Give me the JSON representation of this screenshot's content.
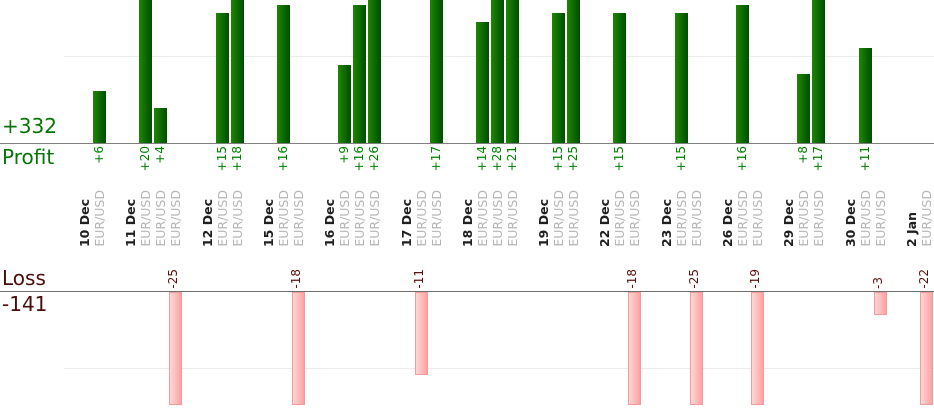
{
  "chart_data": {
    "type": "bar",
    "description": "Daily trade profit (top, green) and loss (bottom, pink) bar chart, values in pips per trade",
    "profit_total_label": "+332",
    "profit_axis_label": "Profit",
    "loss_axis_label": "Loss",
    "loss_total_label": "-141",
    "gridlines": {
      "profit": [
        10
      ],
      "loss": [
        -10
      ]
    },
    "legend_position": "none",
    "colors": {
      "profit_bar": "#0b7a00",
      "loss_bar": "#ffaaaa",
      "profit_text": "#008000",
      "loss_text": "#5c1010",
      "date_text": "#1f1f1f",
      "symbol_text": "#b5b5b5"
    },
    "groups": [
      {
        "date": "10 Dec",
        "trades": [
          {
            "symbol": "EUR/USD",
            "value": 6
          }
        ]
      },
      {
        "date": "11 Dec",
        "trades": [
          {
            "symbol": "EUR/USD",
            "value": 20
          },
          {
            "symbol": "EUR/USD",
            "value": 4
          },
          {
            "symbol": "EUR/USD",
            "value": -25
          }
        ]
      },
      {
        "date": "12 Dec",
        "trades": [
          {
            "symbol": "EUR/USD",
            "value": 15
          },
          {
            "symbol": "EUR/USD",
            "value": 18
          }
        ]
      },
      {
        "date": "15 Dec",
        "trades": [
          {
            "symbol": "EUR/USD",
            "value": 16
          },
          {
            "symbol": "EUR/USD",
            "value": -18
          }
        ]
      },
      {
        "date": "16 Dec",
        "trades": [
          {
            "symbol": "EUR/USD",
            "value": 9
          },
          {
            "symbol": "EUR/USD",
            "value": 16
          },
          {
            "symbol": "EUR/USD",
            "value": 26
          }
        ]
      },
      {
        "date": "17 Dec",
        "trades": [
          {
            "symbol": "EUR/USD",
            "value": -11
          },
          {
            "symbol": "EUR/USD",
            "value": 17
          }
        ]
      },
      {
        "date": "18 Dec",
        "trades": [
          {
            "symbol": "EUR/USD",
            "value": 14
          },
          {
            "symbol": "EUR/USD",
            "value": 28
          },
          {
            "symbol": "EUR/USD",
            "value": 21
          }
        ]
      },
      {
        "date": "19 Dec",
        "trades": [
          {
            "symbol": "EUR/USD",
            "value": 15
          },
          {
            "symbol": "EUR/USD",
            "value": 25
          }
        ]
      },
      {
        "date": "22 Dec",
        "trades": [
          {
            "symbol": "EUR/USD",
            "value": 15
          },
          {
            "symbol": "EUR/USD",
            "value": -18
          }
        ]
      },
      {
        "date": "23 Dec",
        "trades": [
          {
            "symbol": "EUR/USD",
            "value": 15
          },
          {
            "symbol": "EUR/USD",
            "value": -25
          }
        ]
      },
      {
        "date": "26 Dec",
        "trades": [
          {
            "symbol": "EUR/USD",
            "value": 16
          },
          {
            "symbol": "EUR/USD",
            "value": -19
          }
        ]
      },
      {
        "date": "29 Dec",
        "trades": [
          {
            "symbol": "EUR/USD",
            "value": 8
          },
          {
            "symbol": "EUR/USD",
            "value": 17
          }
        ]
      },
      {
        "date": "30 Dec",
        "trades": [
          {
            "symbol": "EUR/USD",
            "value": 11
          },
          {
            "symbol": "EUR/USD",
            "value": -3
          }
        ]
      },
      {
        "date": "2 Jan",
        "trades": [
          {
            "symbol": "EUR/USD",
            "value": -22
          }
        ]
      }
    ]
  }
}
